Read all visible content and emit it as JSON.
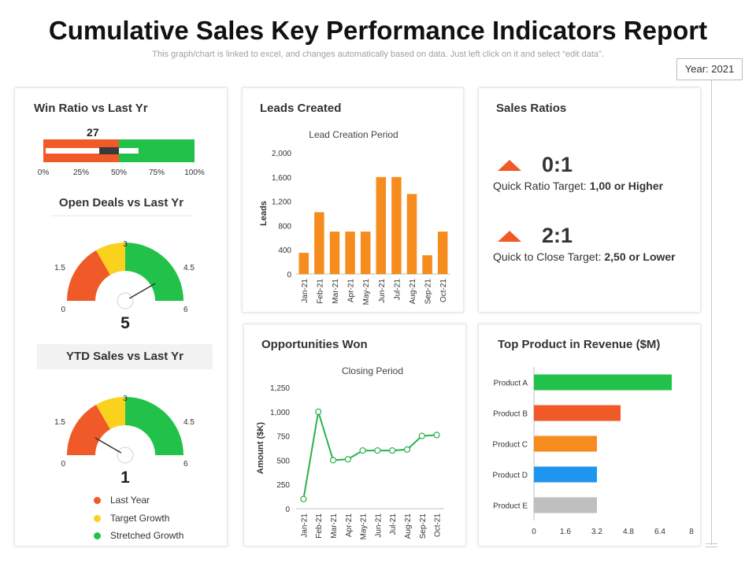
{
  "header": {
    "title": "Cumulative Sales Key Performance Indicators Report",
    "subtitle": "This graph/chart is linked to excel, and changes automatically based on data. Just left click on it and select “edit data”.",
    "year_label": "Year: 2021"
  },
  "colors": {
    "red": "#f05a28",
    "yellow": "#fad21e",
    "green": "#22c24a",
    "orange": "#f78c1e",
    "blue": "#1e96f0",
    "gray": "#bfbfbf",
    "dark": "#3a3a3a",
    "line_green": "#2ab24a"
  },
  "panels": {
    "win_ratio_title": "Win Ratio vs Last Yr",
    "open_deals_title": "Open Deals vs Last Yr",
    "ytd_sales_title": "YTD Sales vs Last Yr",
    "leads_title": "Leads Created",
    "sales_ratios_title": "Sales Ratios",
    "opportunities_title": "Opportunities Won",
    "top_product_title": "Top Product in Revenue ($M)"
  },
  "sales_ratios": {
    "quick_ratio_value": "0:1",
    "quick_ratio_label": "Quick Ratio Target: ",
    "quick_ratio_target": "1,00 or Higher",
    "quick_close_value": "2:1",
    "quick_close_label": "Quick to Close Target: ",
    "quick_close_target": "2,50 or Lower"
  },
  "legend": [
    {
      "label": "Last Year",
      "color": "#f05a28"
    },
    {
      "label": "Target Growth",
      "color": "#fad21e"
    },
    {
      "label": "Stretched Growth",
      "color": "#22c24a"
    }
  ],
  "chart_data": [
    {
      "type": "bar",
      "id": "win_ratio",
      "title": "Win Ratio vs Last Yr",
      "orientation": "horizontal-bullet",
      "value": 27,
      "value_label": "27",
      "bands": [
        {
          "name": "Last Year",
          "from": 0,
          "to": 50
        },
        {
          "name": "Stretched Growth",
          "from": 50,
          "to": 100
        }
      ],
      "marker_range": [
        37,
        50
      ],
      "xlim": [
        0,
        100
      ],
      "xticks": [
        "0%",
        "25%",
        "50%",
        "75%",
        "100%"
      ]
    },
    {
      "type": "gauge",
      "id": "open_deals",
      "title": "Open Deals vs Last Yr",
      "value": 5,
      "value_label": "5",
      "range": [
        0,
        6
      ],
      "bands": [
        {
          "name": "Last Year",
          "from": 0,
          "to": 2
        },
        {
          "name": "Target Growth",
          "from": 2,
          "to": 3
        },
        {
          "name": "Stretched Growth",
          "from": 3,
          "to": 6
        }
      ],
      "tick_labels": [
        "0",
        "1.5",
        "3",
        "4.5",
        "6"
      ]
    },
    {
      "type": "gauge",
      "id": "ytd_sales",
      "title": "YTD Sales vs Last Yr",
      "value": 1,
      "value_label": "1",
      "range": [
        0,
        6
      ],
      "bands": [
        {
          "name": "Last Year",
          "from": 0,
          "to": 2
        },
        {
          "name": "Target Growth",
          "from": 2,
          "to": 3
        },
        {
          "name": "Stretched Growth",
          "from": 3,
          "to": 6
        }
      ],
      "tick_labels": [
        "0",
        "1.5",
        "3",
        "4.5",
        "6"
      ]
    },
    {
      "type": "bar",
      "id": "leads_created",
      "title": "Lead Creation Period",
      "categories": [
        "Jan-21",
        "Feb-21",
        "Mar-21",
        "Apr-21",
        "May-21",
        "Jun-21",
        "Jul-21",
        "Aug-21",
        "Sep-21",
        "Oct-21"
      ],
      "values": [
        350,
        1020,
        700,
        700,
        700,
        1600,
        1600,
        1320,
        310,
        700
      ],
      "ylabel": "Leads",
      "ylim": [
        0,
        2000
      ],
      "yticks": [
        "0",
        "400",
        "800",
        "1,200",
        "1,600",
        "2,000"
      ]
    },
    {
      "type": "line",
      "id": "opportunities_won",
      "title": "Closing Period",
      "categories": [
        "Jan-21",
        "Feb-21",
        "Mar-21",
        "Apr-21",
        "May-21",
        "Jun-21",
        "Jul-21",
        "Aug-21",
        "Sep-21",
        "Oct-21"
      ],
      "values": [
        100,
        1000,
        500,
        510,
        600,
        600,
        600,
        610,
        750,
        760
      ],
      "ylabel": "Amount ($K)",
      "ylim": [
        0,
        1250
      ],
      "yticks": [
        "0",
        "250",
        "500",
        "750",
        "1,000",
        "1,250"
      ]
    },
    {
      "type": "bar",
      "id": "top_product",
      "title": "Top Product in Revenue ($M)",
      "orientation": "horizontal",
      "categories": [
        "Product A",
        "Product B",
        "Product C",
        "Product D",
        "Product E"
      ],
      "values": [
        7.0,
        4.4,
        3.2,
        3.2,
        3.2
      ],
      "colors": [
        "#22c24a",
        "#f05a28",
        "#f78c1e",
        "#1e96f0",
        "#bfbfbf"
      ],
      "xlim": [
        0,
        8
      ],
      "xticks": [
        "0",
        "1.6",
        "3.2",
        "4.8",
        "6.4",
        "8"
      ]
    }
  ]
}
